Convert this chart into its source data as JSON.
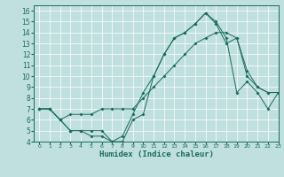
{
  "xlabel": "Humidex (Indice chaleur)",
  "bg_color": "#c0e0e0",
  "line_color": "#1a6b5a",
  "xlim": [
    -0.5,
    23
  ],
  "ylim": [
    4,
    16.5
  ],
  "xticks": [
    0,
    1,
    2,
    3,
    4,
    5,
    6,
    7,
    8,
    9,
    10,
    11,
    12,
    13,
    14,
    15,
    16,
    17,
    18,
    19,
    20,
    21,
    22,
    23
  ],
  "yticks": [
    4,
    5,
    6,
    7,
    8,
    9,
    10,
    11,
    12,
    13,
    14,
    15,
    16
  ],
  "line1_x": [
    0,
    1,
    2,
    3,
    4,
    5,
    6,
    7,
    8,
    9,
    10,
    11,
    12,
    13,
    14,
    15,
    16,
    17,
    18,
    19,
    20,
    21,
    22,
    23
  ],
  "line1_y": [
    7.0,
    7.0,
    6.0,
    5.0,
    5.0,
    4.5,
    4.5,
    4.0,
    4.5,
    6.5,
    8.5,
    10.0,
    12.0,
    13.5,
    14.0,
    14.8,
    15.8,
    15.0,
    13.5,
    8.5,
    9.5,
    8.5,
    7.0,
    8.5
  ],
  "line2_x": [
    0,
    1,
    2,
    3,
    4,
    5,
    6,
    7,
    8,
    9,
    10,
    11,
    12,
    13,
    14,
    15,
    16,
    17,
    18,
    19,
    20,
    21,
    22,
    23
  ],
  "line2_y": [
    7.0,
    7.0,
    6.0,
    6.5,
    6.5,
    6.5,
    7.0,
    7.0,
    7.0,
    7.0,
    8.0,
    9.0,
    10.0,
    11.0,
    12.0,
    13.0,
    13.5,
    14.0,
    14.0,
    13.5,
    10.5,
    9.0,
    8.5,
    8.5
  ],
  "line3_x": [
    0,
    1,
    2,
    3,
    4,
    5,
    6,
    7,
    8,
    9,
    10,
    11,
    12,
    13,
    14,
    15,
    16,
    17,
    18,
    19,
    20,
    21,
    22,
    23
  ],
  "line3_y": [
    7.0,
    7.0,
    6.0,
    5.0,
    5.0,
    5.0,
    5.0,
    4.0,
    4.0,
    6.0,
    6.5,
    10.0,
    12.0,
    13.5,
    14.0,
    14.8,
    15.8,
    14.8,
    13.0,
    13.5,
    10.0,
    9.0,
    8.5,
    8.5
  ]
}
